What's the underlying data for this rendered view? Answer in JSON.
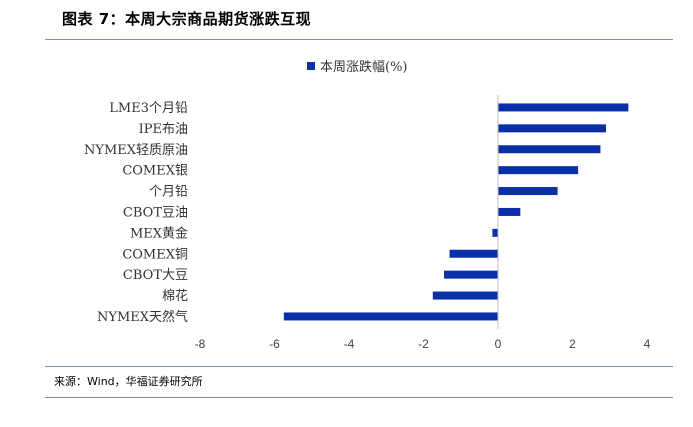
{
  "header": {
    "title": "图表 7：本周大宗商品期货涨跌互现"
  },
  "footer": {
    "source": "来源：Wind，华福证券研究所"
  },
  "chart_data": {
    "type": "bar",
    "orientation": "horizontal",
    "legend": {
      "label": "本周涨跌幅(%)",
      "position": "top-center"
    },
    "categories": [
      "LME3个月铅",
      "IPE布油",
      "NYMEX轻质原油",
      "COMEX银",
      "个月铅",
      "CBOT豆油",
      "MEX黄金",
      "COMEX铜",
      "CBOT大豆",
      "棉花",
      "NYMEX天然气"
    ],
    "series": [
      {
        "name": "本周涨跌幅(%)",
        "values": [
          3.5,
          2.9,
          2.75,
          2.15,
          1.6,
          0.6,
          -0.15,
          -1.3,
          -1.45,
          -1.75,
          -5.75
        ]
      }
    ],
    "xlim": [
      -8,
      4
    ],
    "xticks": [
      "-8",
      "-6",
      "-4",
      "-2",
      "0",
      "2",
      "4"
    ],
    "bar_color": "#0a2fa8",
    "grid": false
  }
}
